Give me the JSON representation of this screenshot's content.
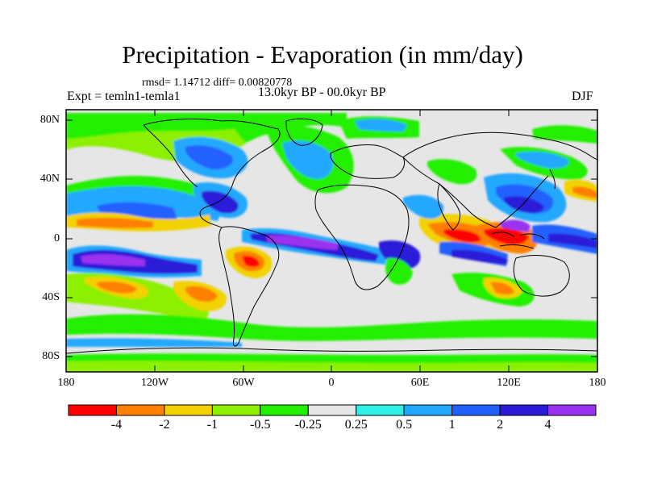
{
  "title": "Precipitation - Evaporation (in mm/day)",
  "stats": "rmsd= 1.14712 diff= 0.00820778",
  "experiment": "Expt = temln1-temla1",
  "period": "13.0kyr BP - 00.0kyr BP",
  "season": "DJF",
  "y_axis": {
    "labels": [
      "80N",
      "40N",
      "0",
      "40S",
      "80S"
    ],
    "values": [
      80,
      40,
      0,
      -40,
      -80
    ]
  },
  "x_axis": {
    "labels": [
      "180",
      "120W",
      "60W",
      "0",
      "60E",
      "120E",
      "180"
    ],
    "values": [
      -180,
      -120,
      -60,
      0,
      60,
      120,
      180
    ]
  },
  "colorbar": {
    "colors": [
      "#ff0000",
      "#ff8000",
      "#f2d200",
      "#8cf000",
      "#22f000",
      "#e6e6e6",
      "#2ff0e6",
      "#20a8ff",
      "#2060ff",
      "#2a1ad8",
      "#9a30f0"
    ],
    "labels": [
      "-4",
      "-2",
      "-1",
      "-0.5",
      "-0.25",
      "0.25",
      "0.5",
      "1",
      "2",
      "4"
    ]
  },
  "map": {
    "background_color": "#e6e6e6"
  }
}
